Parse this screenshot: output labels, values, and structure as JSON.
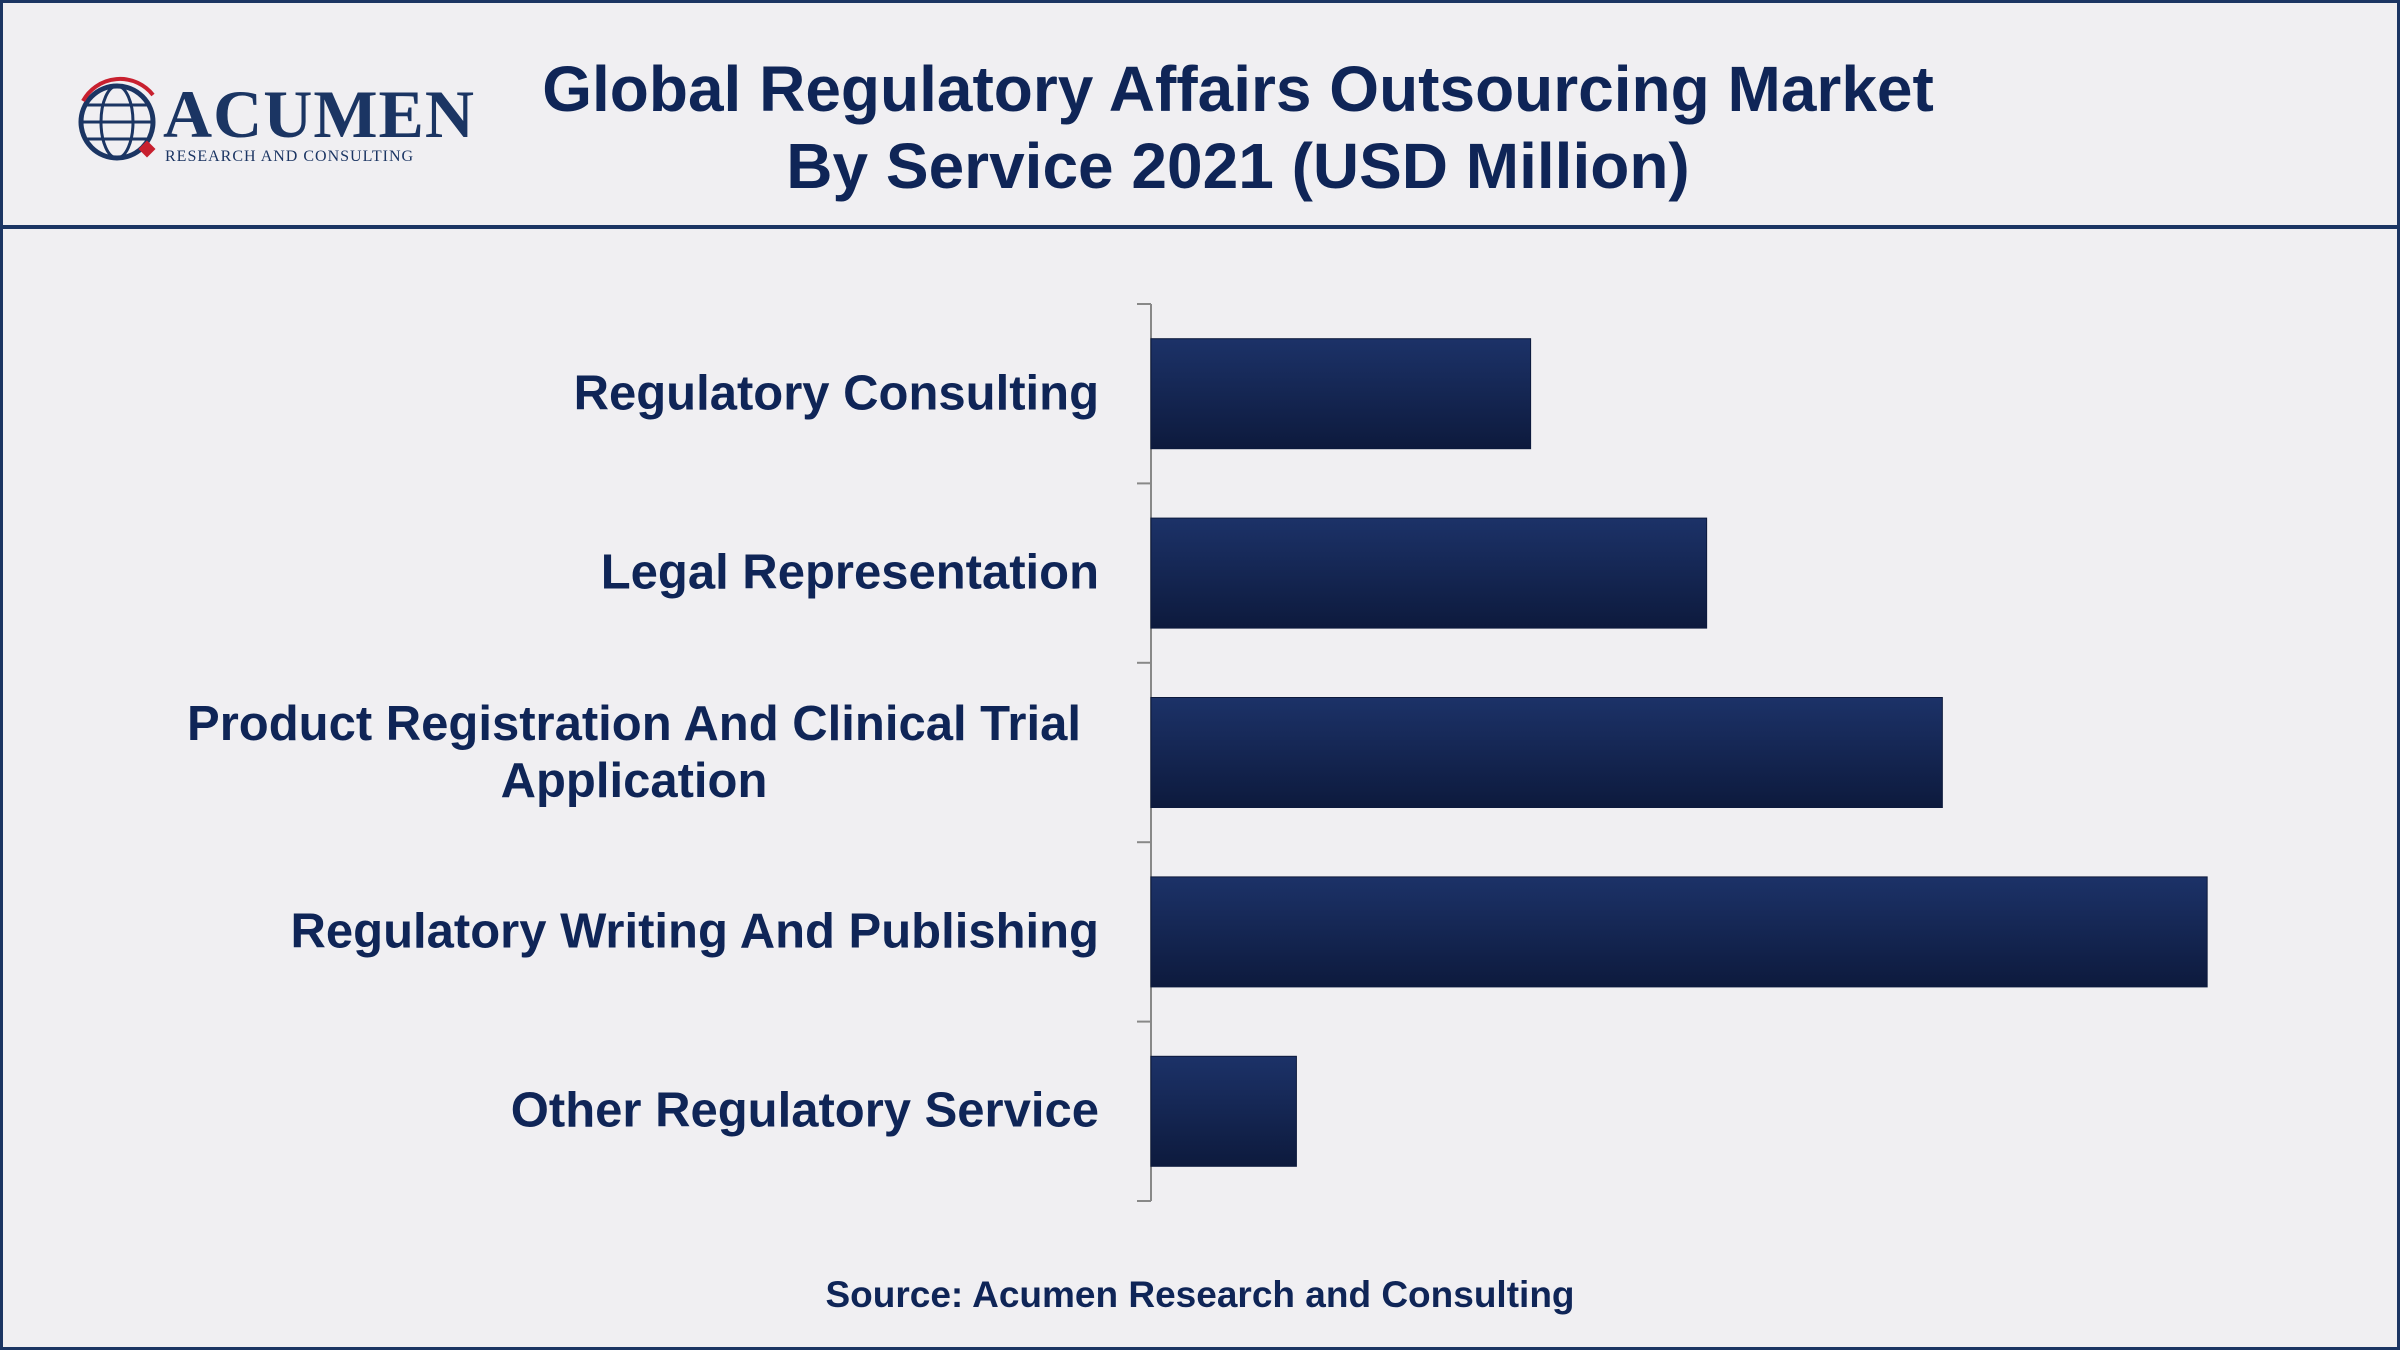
{
  "logo": {
    "name": "ACUMEN",
    "tagline": "RESEARCH AND CONSULTING"
  },
  "chart_data": {
    "type": "bar",
    "orientation": "horizontal",
    "title": [
      "Global Regulatory Affairs Outsourcing Market",
      "By Service 2021 (USD Million)"
    ],
    "categories": [
      "Regulatory Consulting",
      "Legal Representation",
      "Product Registration And Clinical Trial Application",
      "Regulatory Writing And Publishing",
      "Other Regulatory Service"
    ],
    "values": [
      248,
      363,
      517,
      690,
      95
    ],
    "color": "#1c3268",
    "xlim": [
      0,
      750
    ]
  },
  "source": "Source: Acumen Research and Consulting"
}
